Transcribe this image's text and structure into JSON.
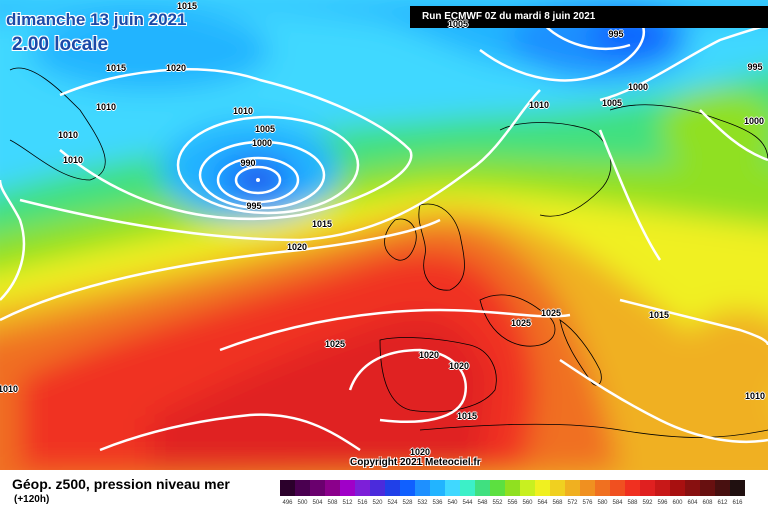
{
  "header": {
    "date": "dimanche 13 juin 2021",
    "time": "2.00 locale",
    "run": "Run ECMWF 0Z du mardi 8 juin 2021"
  },
  "copyright": "Copyright 2021 Meteociel.fr",
  "legend": {
    "title": "Géop. z500, pression niveau mer",
    "subtitle": "(+120h)",
    "values": [
      "496",
      "500",
      "504",
      "508",
      "512",
      "516",
      "520",
      "524",
      "528",
      "532",
      "536",
      "540",
      "544",
      "548",
      "552",
      "556",
      "560",
      "564",
      "568",
      "572",
      "576",
      "580",
      "584",
      "588",
      "592",
      "596",
      "600",
      "604",
      "608",
      "612",
      "616"
    ],
    "colors": [
      "#2b002b",
      "#4a0050",
      "#6a006e",
      "#8b008b",
      "#a000c8",
      "#7d1fd8",
      "#4b2bdc",
      "#2040e8",
      "#1060ff",
      "#1e90ff",
      "#22b4ff",
      "#40d8ff",
      "#3cf0c8",
      "#40e080",
      "#5ce040",
      "#90e020",
      "#c8f020",
      "#f0f020",
      "#f0d020",
      "#f0b020",
      "#f09020",
      "#f07020",
      "#f05020",
      "#f03020",
      "#e02020",
      "#c81818",
      "#a81010",
      "#881010",
      "#681010",
      "#481010",
      "#201010"
    ]
  },
  "pressure_labels": [
    {
      "text": "1015",
      "id": "1015-a"
    },
    {
      "text": "1015",
      "id": "1015-b"
    },
    {
      "text": "1020",
      "id": "1020-a"
    },
    {
      "text": "1010",
      "id": "1010-a"
    },
    {
      "text": "1010",
      "id": "1010-b"
    },
    {
      "text": "1010",
      "id": "1010-c"
    },
    {
      "text": "1010",
      "id": "1010-d"
    },
    {
      "text": "1005",
      "id": "1005-a"
    },
    {
      "text": "1000",
      "id": "1000-a"
    },
    {
      "text": "990",
      "id": "990"
    },
    {
      "text": "995",
      "id": "995-a"
    },
    {
      "text": "1015",
      "id": "1015-c"
    },
    {
      "text": "1020",
      "id": "1020-b"
    },
    {
      "text": "1010",
      "id": "1010-e"
    },
    {
      "text": "1005",
      "id": "1005-b"
    },
    {
      "text": "1000",
      "id": "1000-b"
    },
    {
      "text": "995",
      "id": "995-b"
    },
    {
      "text": "995",
      "id": "995-c"
    },
    {
      "text": "1000",
      "id": "1000-c"
    },
    {
      "text": "1025",
      "id": "1025-a"
    },
    {
      "text": "1025",
      "id": "1025-b"
    },
    {
      "text": "1025",
      "id": "1025-c"
    },
    {
      "text": "1020",
      "id": "1020-c"
    },
    {
      "text": "1020",
      "id": "1020-d"
    },
    {
      "text": "1015",
      "id": "1015-d"
    },
    {
      "text": "1015",
      "id": "1015-e"
    },
    {
      "text": "1020",
      "id": "1020-e"
    },
    {
      "text": "1010",
      "id": "1010-f"
    },
    {
      "text": "1010",
      "id": "1010-g"
    },
    {
      "text": "1005",
      "id": "1005-c"
    }
  ]
}
